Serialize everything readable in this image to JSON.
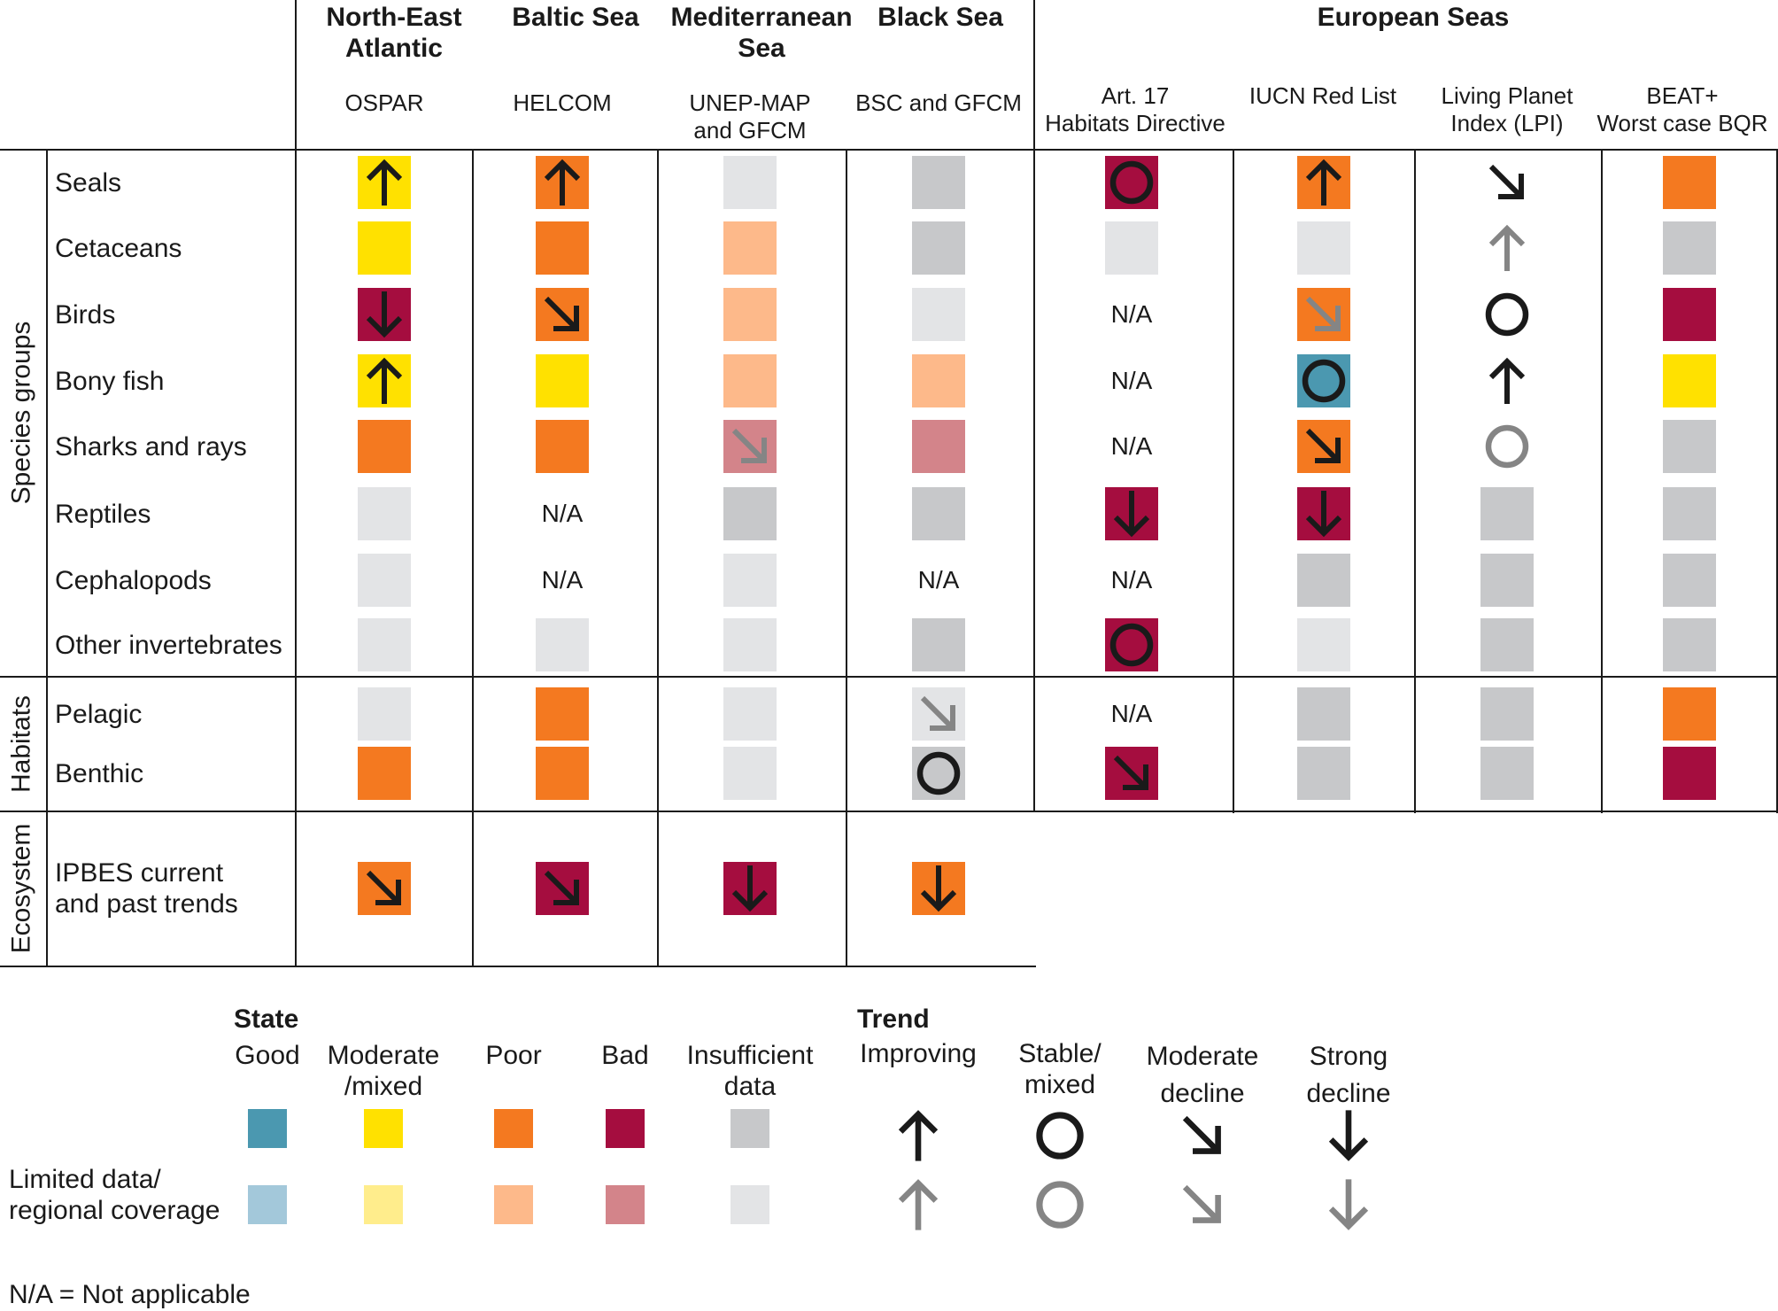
{
  "colors": {
    "good": "#4b98b0",
    "moderate": "#ffe100",
    "poor": "#f47920",
    "bad": "#a50d3f",
    "insufficient": "#c7c8ca",
    "good_limited": "#a3c8da",
    "moderate_limited": "#ffed8c",
    "poor_limited": "#fdb98a",
    "bad_limited": "#d3848a",
    "insufficient_limited": "#e3e4e6",
    "trend_strong": "#1a1a1a",
    "trend_limited": "#858585"
  },
  "chart_data": {
    "type": "table",
    "title": "",
    "groups": [
      {
        "label": "North-East\nAtlantic",
        "columns": [
          "OSPAR"
        ]
      },
      {
        "label": "Baltic Sea",
        "columns": [
          "HELCOM"
        ]
      },
      {
        "label": "Mediterranean\nSea",
        "columns": [
          "UNEP-MAP\nand GFCM"
        ]
      },
      {
        "label": "Black Sea",
        "columns": [
          "BSC and GFCM"
        ]
      },
      {
        "label": "European Seas",
        "columns": [
          "Art. 17\nHabitats Directive",
          "IUCN Red List",
          "Living Planet\nIndex (LPI)",
          "BEAT+\nWorst case BQR"
        ]
      }
    ],
    "row_groups": [
      {
        "label": "Species groups",
        "rows": [
          "Seals",
          "Cetaceans",
          "Birds",
          "Bony fish",
          "Sharks and rays",
          "Reptiles",
          "Cephalopods",
          "Other invertebrates"
        ]
      },
      {
        "label": "Habitats",
        "rows": [
          "Pelagic",
          "Benthic"
        ]
      },
      {
        "label": "Ecosystem",
        "rows": [
          "IPBES current\nand past trends"
        ]
      }
    ],
    "cells": [
      [
        [
          "moderate",
          "improving"
        ],
        [
          "poor",
          "improving"
        ],
        [
          "insufficient_limited",
          null
        ],
        [
          "insufficient",
          null
        ],
        [
          "bad",
          "stable"
        ],
        [
          "poor",
          "improving"
        ],
        [
          null,
          "moderate_decline"
        ],
        [
          "poor",
          null
        ]
      ],
      [
        [
          "moderate",
          null
        ],
        [
          "poor",
          null
        ],
        [
          "poor_limited",
          null
        ],
        [
          "insufficient",
          null
        ],
        [
          "insufficient_limited",
          null
        ],
        [
          "insufficient_limited",
          null
        ],
        [
          null,
          "improving_limited"
        ],
        [
          "insufficient",
          null
        ]
      ],
      [
        [
          "bad",
          "strong_decline"
        ],
        [
          "poor",
          "moderate_decline"
        ],
        [
          "poor_limited",
          null
        ],
        [
          "insufficient_limited",
          null
        ],
        [
          "NA",
          null
        ],
        [
          "poor",
          "moderate_decline_limited"
        ],
        [
          null,
          "stable"
        ],
        [
          "bad",
          null
        ]
      ],
      [
        [
          "moderate",
          "improving"
        ],
        [
          "moderate",
          null
        ],
        [
          "poor_limited",
          null
        ],
        [
          "poor_limited",
          null
        ],
        [
          "NA",
          null
        ],
        [
          "good",
          "stable"
        ],
        [
          null,
          "improving"
        ],
        [
          "moderate",
          null
        ]
      ],
      [
        [
          "poor",
          null
        ],
        [
          "poor",
          null
        ],
        [
          "bad_limited",
          "moderate_decline_limited"
        ],
        [
          "bad_limited",
          null
        ],
        [
          "NA",
          null
        ],
        [
          "poor",
          "moderate_decline"
        ],
        [
          null,
          "stable_limited"
        ],
        [
          "insufficient",
          null
        ]
      ],
      [
        [
          "insufficient_limited",
          null
        ],
        [
          "NA",
          null
        ],
        [
          "insufficient",
          null
        ],
        [
          "insufficient",
          null
        ],
        [
          "bad",
          "strong_decline"
        ],
        [
          "bad",
          "strong_decline"
        ],
        [
          "insufficient",
          null
        ],
        [
          "insufficient",
          null
        ]
      ],
      [
        [
          "insufficient_limited",
          null
        ],
        [
          "NA",
          null
        ],
        [
          "insufficient_limited",
          null
        ],
        [
          "NA",
          null
        ],
        [
          "NA",
          null
        ],
        [
          "insufficient",
          null
        ],
        [
          "insufficient",
          null
        ],
        [
          "insufficient",
          null
        ]
      ],
      [
        [
          "insufficient_limited",
          null
        ],
        [
          "insufficient_limited",
          null
        ],
        [
          "insufficient_limited",
          null
        ],
        [
          "insufficient",
          null
        ],
        [
          "bad",
          "stable"
        ],
        [
          "insufficient_limited",
          null
        ],
        [
          "insufficient",
          null
        ],
        [
          "insufficient",
          null
        ]
      ],
      [
        [
          "insufficient_limited",
          null
        ],
        [
          "poor",
          null
        ],
        [
          "insufficient_limited",
          null
        ],
        [
          "insufficient_limited",
          "moderate_decline_limited"
        ],
        [
          "NA",
          null
        ],
        [
          "insufficient",
          null
        ],
        [
          "insufficient",
          null
        ],
        [
          "poor",
          null
        ]
      ],
      [
        [
          "poor",
          null
        ],
        [
          "poor",
          null
        ],
        [
          "insufficient_limited",
          null
        ],
        [
          "insufficient",
          "stable"
        ],
        [
          "bad",
          "moderate_decline"
        ],
        [
          "insufficient",
          null
        ],
        [
          "insufficient",
          null
        ],
        [
          "bad",
          null
        ]
      ],
      [
        [
          "poor",
          "moderate_decline"
        ],
        [
          "bad",
          "moderate_decline"
        ],
        [
          "bad",
          "strong_decline"
        ],
        [
          "poor",
          "strong_decline"
        ]
      ]
    ],
    "na_label": "N/A",
    "legend": {
      "state_title": "State",
      "state_items": [
        {
          "key": "good",
          "label": "Good"
        },
        {
          "key": "moderate",
          "label": "Moderate\n/mixed"
        },
        {
          "key": "poor",
          "label": "Poor"
        },
        {
          "key": "bad",
          "label": "Bad"
        },
        {
          "key": "insufficient",
          "label": "Insufficient\ndata"
        }
      ],
      "limited_label": "Limited data/\nregional coverage",
      "trend_title": "Trend",
      "trend_items": [
        {
          "key": "improving",
          "label": "Improving"
        },
        {
          "key": "stable",
          "label": "Stable/\nmixed"
        },
        {
          "key": "moderate_decline",
          "label": "Moderate\ndecline"
        },
        {
          "key": "strong_decline",
          "label": "Strong\ndecline"
        }
      ],
      "footnote": "N/A = Not applicable"
    }
  }
}
